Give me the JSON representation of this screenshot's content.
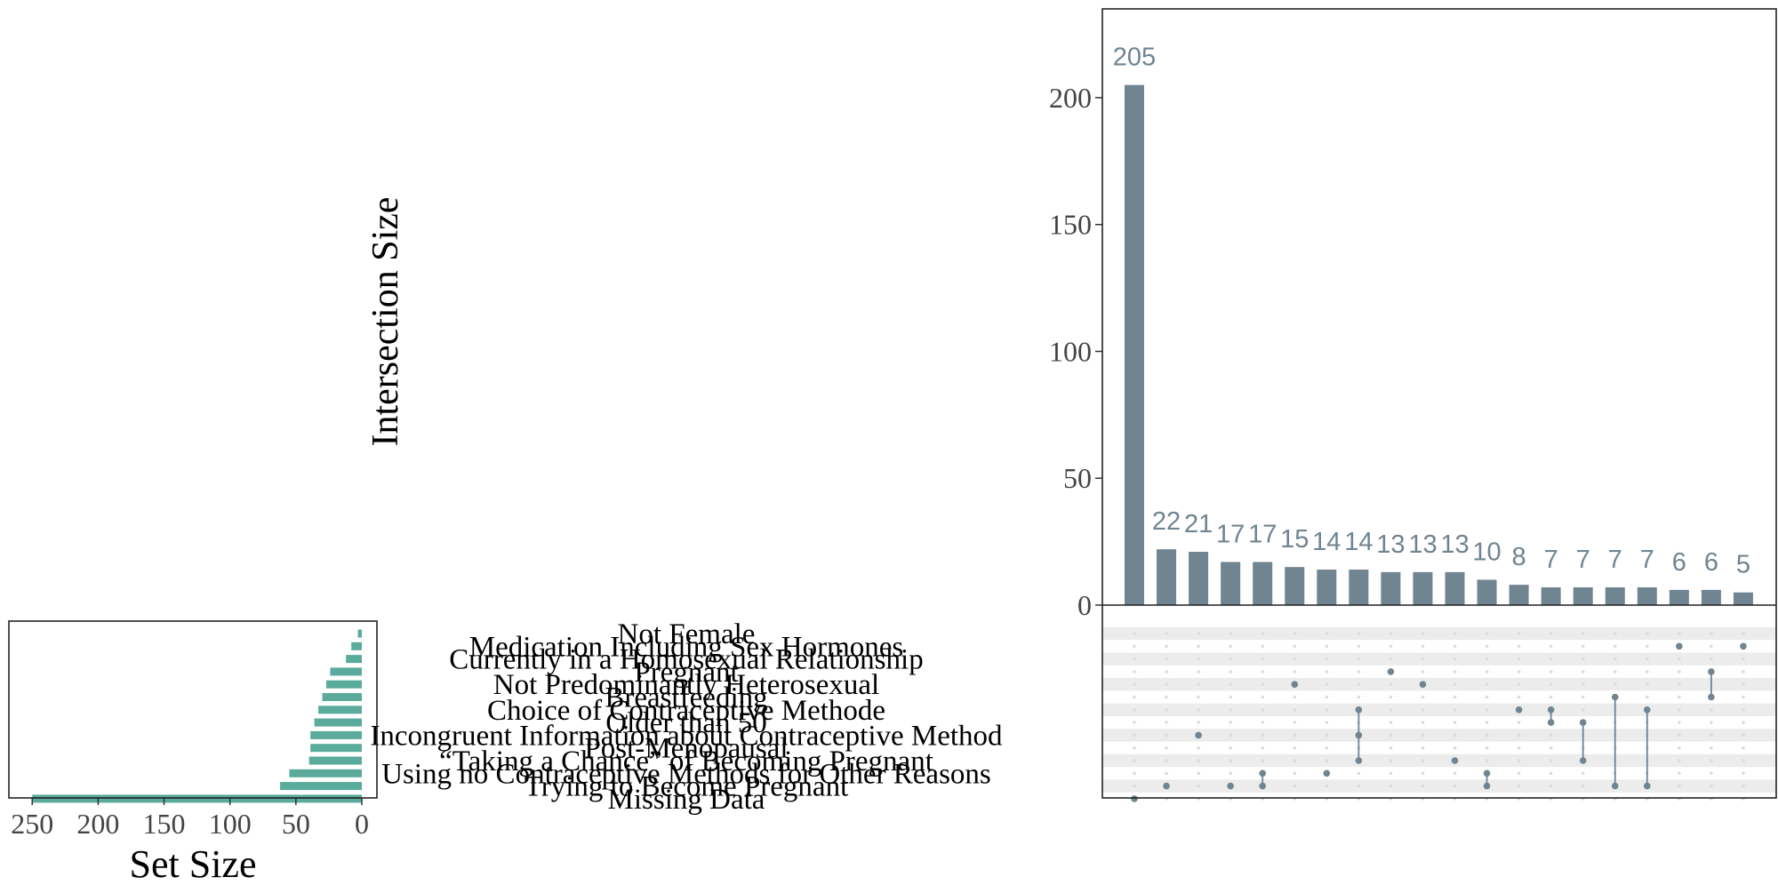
{
  "chart_data": {
    "type": "bar",
    "subtype": "upset-plot",
    "ylabel": "Intersection Size",
    "ylim": [
      0,
      235
    ],
    "yticks": [
      0,
      50,
      100,
      150,
      200
    ],
    "intersection_sizes": [
      205,
      22,
      21,
      17,
      17,
      15,
      14,
      14,
      13,
      13,
      13,
      10,
      8,
      7,
      7,
      7,
      7,
      6,
      6,
      5
    ],
    "intersection_labels": [
      "205",
      "22",
      "21",
      "17",
      "17",
      "15",
      "14",
      "14",
      "13",
      "13",
      "13",
      "10",
      "8",
      "7",
      "7",
      "7",
      "7",
      "6",
      "6",
      "5"
    ],
    "sets": [
      "Not Female",
      "Medication Including Sex Hormones",
      "Currently in a Homosexual Relationship",
      "Pregnant",
      "Not Predominantly Heterosexual",
      "Breastfeeding",
      "Choice of Contraceptive Methode",
      "Older than 50",
      "Incongruent Information about Contraceptive Method",
      "Post-Menopausal",
      "“Taking a Chance” of Becoming Pregnant",
      "Using no Contraceptive Methods for Other Reasons",
      "Trying to Become Pregnant",
      "Missing Data"
    ],
    "set_sizes": [
      3,
      8,
      12,
      24,
      27,
      30,
      33,
      36,
      39,
      39,
      40,
      55,
      62,
      250
    ],
    "set_size_xlabel": "Set Size",
    "set_size_xlim": [
      0,
      265
    ],
    "set_size_ticks": [
      250,
      200,
      150,
      100,
      50,
      0
    ],
    "intersection_membership": [
      [
        13
      ],
      [
        12
      ],
      [
        8
      ],
      [
        12
      ],
      [
        11,
        12
      ],
      [
        4
      ],
      [
        11
      ],
      [
        10,
        8,
        6
      ],
      [
        3
      ],
      [
        4
      ],
      [
        10
      ],
      [
        12,
        11
      ],
      [
        6
      ],
      [
        6,
        7
      ],
      [
        7,
        10
      ],
      [
        5,
        12
      ],
      [
        6,
        12
      ],
      [
        1
      ],
      [
        3,
        5
      ],
      [
        1
      ]
    ],
    "bar_color": "#708491",
    "set_bar_color": "#5aab9b",
    "dot_color": "#708491"
  }
}
